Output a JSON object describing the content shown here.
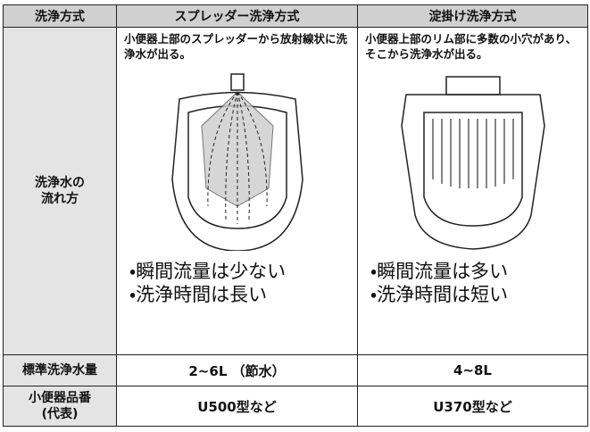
{
  "table": {
    "header": [
      "洗浄方式",
      "スプレッダー洗浄方式",
      "淀掛け洗浄方式"
    ],
    "flow": {
      "label": [
        "洗浄水の",
        "流れ方"
      ],
      "spreader": {
        "description": "小便器上部のスプレッダーから放射線状に洗浄水が出る。",
        "bullets": [
          "・瞬間流量は少ない",
          "・洗浄時間は長い"
        ]
      },
      "rim": {
        "description": "小便器上部のリム部に多数の小穴があり、そこから洗浄水が出る。",
        "bullets": [
          "・瞬間流量は多い",
          "・洗浄時間は短い"
        ]
      }
    },
    "rows": [
      [
        [
          "標準洗浄水量"
        ],
        "2~6L （節水）",
        "4~8L"
      ],
      [
        [
          "小便器品番",
          "(代表)"
        ],
        "U500型など",
        "U370型など"
      ]
    ]
  }
}
